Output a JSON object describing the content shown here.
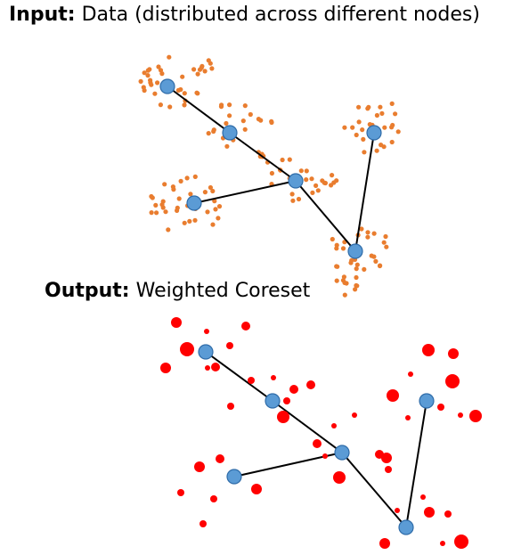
{
  "input_section": {
    "label": "Input:",
    "text": " Data (distributed across different nodes)"
  },
  "output_section": {
    "label": "Output:",
    "text": " Weighted Coreset"
  },
  "colors": {
    "data_points": "#E97D2F",
    "coreset_points": "#FF0000",
    "nodes": "#5B9BD5",
    "node_border": "#2E6BA8",
    "edges": "#000000"
  }
}
